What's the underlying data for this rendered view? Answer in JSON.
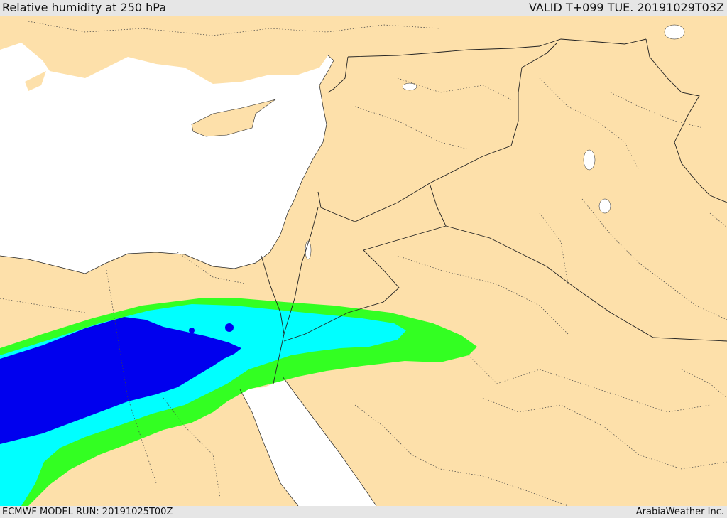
{
  "header": {
    "title": "Relative humidity at 250 hPa",
    "valid": "VALID T+099 TUE. 20191029T03Z"
  },
  "footer": {
    "model_run": "ECMWF MODEL RUN: 20191025T00Z",
    "credit": "ArabiaWeather Inc."
  },
  "colors": {
    "land": "#fde0aa",
    "sea": "#ffffff",
    "humidity_low": "#33ff22",
    "humidity_mid": "#00ffff",
    "humidity_high": "#0000ee",
    "border": "#222222"
  }
}
